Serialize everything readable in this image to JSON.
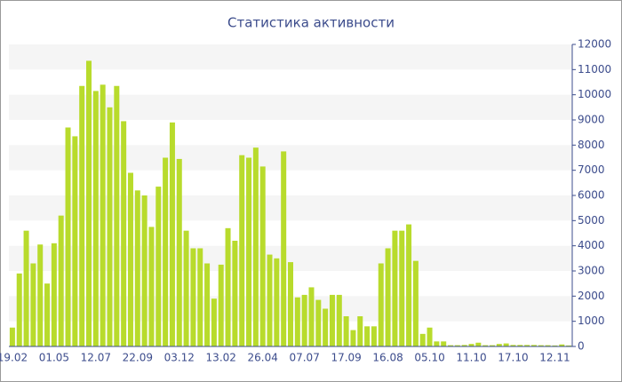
{
  "chart_data": {
    "type": "bar",
    "title": "Статистика активности",
    "categories": [
      "19.02",
      null,
      null,
      null,
      null,
      null,
      "01.05",
      null,
      null,
      null,
      null,
      null,
      "12.07",
      null,
      null,
      null,
      null,
      null,
      "22.09",
      null,
      null,
      null,
      null,
      null,
      "03.12",
      null,
      null,
      null,
      null,
      null,
      "13.02",
      null,
      null,
      null,
      null,
      null,
      "26.04",
      null,
      null,
      null,
      null,
      null,
      "07.07",
      null,
      null,
      null,
      null,
      null,
      "17.09",
      null,
      null,
      null,
      null,
      null,
      "16.08",
      null,
      null,
      null,
      null,
      null,
      "05.10",
      null,
      null,
      null,
      null,
      null,
      "11.10",
      null,
      null,
      null,
      null,
      null,
      "17.10",
      null,
      null,
      null,
      null,
      null,
      "12.11",
      null,
      null
    ],
    "values": [
      750,
      2900,
      4600,
      3300,
      4050,
      2500,
      4100,
      5200,
      8700,
      8350,
      10350,
      11350,
      10150,
      10400,
      9500,
      10350,
      8950,
      6900,
      6200,
      6000,
      4750,
      6350,
      7500,
      8900,
      7450,
      4600,
      3900,
      3900,
      3300,
      1900,
      3250,
      4700,
      4200,
      7600,
      7500,
      7900,
      7150,
      3650,
      3500,
      7750,
      3350,
      1950,
      2050,
      2350,
      1850,
      1500,
      2050,
      2050,
      1200,
      650,
      1200,
      800,
      800,
      3300,
      3900,
      4600,
      4600,
      4850,
      3400,
      500,
      750,
      200,
      200,
      50,
      50,
      60,
      100,
      150,
      50,
      50,
      100,
      120,
      60,
      60,
      60,
      60,
      50,
      50,
      40,
      80,
      40
    ],
    "color": "#b8db2c",
    "ylim": [
      0,
      12000
    ],
    "yticks": [
      0,
      1000,
      2000,
      3000,
      4000,
      5000,
      6000,
      7000,
      8000,
      9000,
      10000,
      11000,
      12000
    ],
    "grid": "bands"
  }
}
